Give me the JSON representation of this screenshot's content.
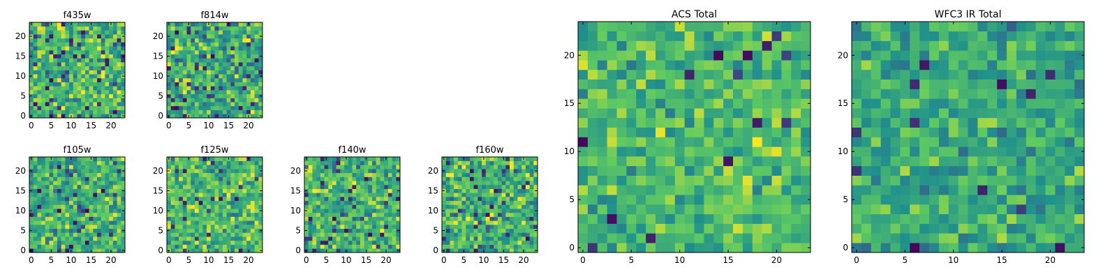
{
  "figure": {
    "background": "#ffffff",
    "colormap": "viridis",
    "colormap_stops": [
      "#440154",
      "#3b528b",
      "#21918c",
      "#5ec962",
      "#fde725"
    ]
  },
  "chart_data": [
    {
      "type": "heatmap",
      "title": "f435w",
      "grid_size": [
        24,
        24
      ],
      "xlim": [
        0,
        24
      ],
      "ylim": [
        0,
        24
      ],
      "xticks": [
        "0",
        "5",
        "10",
        "15",
        "20"
      ],
      "yticks": [
        "0",
        "5",
        "10",
        "15",
        "20"
      ],
      "note": "per-pixel noise values not legible; rendered as viridis noise",
      "seed": 11,
      "mean": 0.66,
      "spread": 0.22,
      "dark_fraction": 0.06
    },
    {
      "type": "heatmap",
      "title": "f814w",
      "grid_size": [
        24,
        24
      ],
      "xlim": [
        0,
        24
      ],
      "ylim": [
        0,
        24
      ],
      "xticks": [
        "0",
        "5",
        "10",
        "15",
        "20"
      ],
      "yticks": [
        "0",
        "5",
        "10",
        "15",
        "20"
      ],
      "seed": 23,
      "mean": 0.63,
      "spread": 0.22,
      "dark_fraction": 0.07
    },
    {
      "type": "heatmap",
      "title": "f105w",
      "grid_size": [
        24,
        24
      ],
      "xlim": [
        0,
        24
      ],
      "ylim": [
        0,
        24
      ],
      "xticks": [
        "0",
        "5",
        "10",
        "15",
        "20"
      ],
      "yticks": [
        "0",
        "5",
        "10",
        "15",
        "20"
      ],
      "seed": 37,
      "mean": 0.64,
      "spread": 0.2,
      "dark_fraction": 0.05
    },
    {
      "type": "heatmap",
      "title": "f125w",
      "grid_size": [
        24,
        24
      ],
      "xlim": [
        0,
        24
      ],
      "ylim": [
        0,
        24
      ],
      "xticks": [
        "0",
        "5",
        "10",
        "15",
        "20"
      ],
      "yticks": [
        "0",
        "5",
        "10",
        "15",
        "20"
      ],
      "seed": 41,
      "mean": 0.68,
      "spread": 0.2,
      "dark_fraction": 0.05
    },
    {
      "type": "heatmap",
      "title": "f140w",
      "grid_size": [
        24,
        24
      ],
      "xlim": [
        0,
        24
      ],
      "ylim": [
        0,
        24
      ],
      "xticks": [
        "0",
        "5",
        "10",
        "15",
        "20"
      ],
      "yticks": [
        "0",
        "5",
        "10",
        "15",
        "20"
      ],
      "seed": 53,
      "mean": 0.66,
      "spread": 0.21,
      "dark_fraction": 0.06
    },
    {
      "type": "heatmap",
      "title": "f160w",
      "grid_size": [
        24,
        24
      ],
      "xlim": [
        0,
        24
      ],
      "ylim": [
        0,
        24
      ],
      "xticks": [
        "0",
        "5",
        "10",
        "15",
        "20"
      ],
      "yticks": [
        "0",
        "5",
        "10",
        "15",
        "20"
      ],
      "seed": 67,
      "mean": 0.66,
      "spread": 0.21,
      "dark_fraction": 0.06
    },
    {
      "type": "heatmap",
      "title": "ACS Total",
      "grid_size": [
        24,
        24
      ],
      "xlim": [
        0,
        24
      ],
      "ylim": [
        0,
        24
      ],
      "xticks": [
        "0",
        "5",
        "10",
        "15",
        "20"
      ],
      "yticks": [
        "0",
        "5",
        "10",
        "15",
        "20"
      ],
      "seed": 79,
      "mean": 0.68,
      "spread": 0.16,
      "dark_fraction": 0.03
    },
    {
      "type": "heatmap",
      "title": "WFC3 IR Total",
      "grid_size": [
        24,
        24
      ],
      "xlim": [
        0,
        24
      ],
      "ylim": [
        0,
        24
      ],
      "xticks": [
        "0",
        "5",
        "10",
        "15",
        "20"
      ],
      "yticks": [
        "0",
        "5",
        "10",
        "15",
        "20"
      ],
      "seed": 97,
      "mean": 0.6,
      "spread": 0.16,
      "dark_fraction": 0.03
    }
  ]
}
